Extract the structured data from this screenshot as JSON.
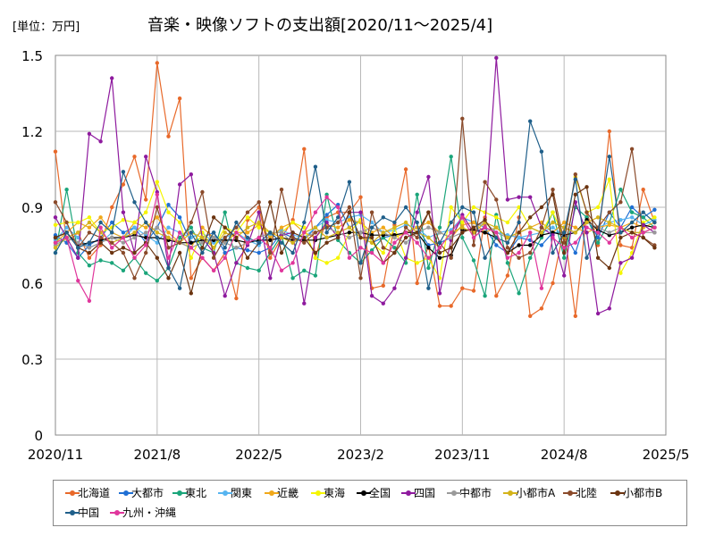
{
  "chart_data": {
    "type": "line",
    "title": "音楽・映像ソフトの支出額[2020/11～2025/4]",
    "unit_label": "[単位：万円]",
    "xlabel": "",
    "ylabel": "",
    "ylim": [
      0,
      1.5
    ],
    "y_ticks": [
      "0",
      "0.3",
      "0.6",
      "0.9",
      "1.2",
      "1.5"
    ],
    "x_ticks": [
      "2020/11",
      "2021/8",
      "2022/5",
      "2023/2",
      "2023/11",
      "2024/8",
      "2025/5"
    ],
    "grid": true,
    "legend_position": "bottom",
    "x": [
      "2020/11",
      "2020/12",
      "2021/1",
      "2021/2",
      "2021/3",
      "2021/4",
      "2021/5",
      "2021/6",
      "2021/7",
      "2021/8",
      "2021/9",
      "2021/10",
      "2021/11",
      "2021/12",
      "2022/1",
      "2022/2",
      "2022/3",
      "2022/4",
      "2022/5",
      "2022/6",
      "2022/7",
      "2022/8",
      "2022/9",
      "2022/10",
      "2022/11",
      "2022/12",
      "2023/1",
      "2023/2",
      "2023/3",
      "2023/4",
      "2023/5",
      "2023/6",
      "2023/7",
      "2023/8",
      "2023/9",
      "2023/10",
      "2023/11",
      "2023/12",
      "2024/1",
      "2024/2",
      "2024/3",
      "2024/4",
      "2024/5",
      "2024/6",
      "2024/7",
      "2024/8",
      "2024/9",
      "2024/10",
      "2024/11",
      "2024/12",
      "2025/1",
      "2025/2",
      "2025/3",
      "2025/4"
    ],
    "series": [
      {
        "name": "北海道",
        "color": "#e8692a",
        "values": [
          1.12,
          0.76,
          0.8,
          0.7,
          0.75,
          0.9,
          0.99,
          1.1,
          0.93,
          1.47,
          1.18,
          1.33,
          0.62,
          0.7,
          0.65,
          0.72,
          0.54,
          0.85,
          0.9,
          0.7,
          0.78,
          0.85,
          1.13,
          0.7,
          0.86,
          0.88,
          0.88,
          0.94,
          0.58,
          0.59,
          0.83,
          1.05,
          0.6,
          0.75,
          0.51,
          0.51,
          0.58,
          0.57,
          0.86,
          0.55,
          0.63,
          0.86,
          0.47,
          0.5,
          0.6,
          0.82,
          0.47,
          0.88,
          0.75,
          1.2,
          0.75,
          0.74,
          0.97,
          0.84
        ]
      },
      {
        "name": "大都市",
        "color": "#1f6fd4",
        "values": [
          0.79,
          0.76,
          0.7,
          0.75,
          0.78,
          0.84,
          0.8,
          0.82,
          0.76,
          0.82,
          0.91,
          0.86,
          0.76,
          0.78,
          0.8,
          0.72,
          0.74,
          0.73,
          0.72,
          0.74,
          0.8,
          0.78,
          0.77,
          0.82,
          0.87,
          0.91,
          0.82,
          0.85,
          0.76,
          0.78,
          0.79,
          0.8,
          0.82,
          0.75,
          0.76,
          0.78,
          0.86,
          0.84,
          0.82,
          0.75,
          0.72,
          0.78,
          0.77,
          0.75,
          0.8,
          0.8,
          0.72,
          0.86,
          0.78,
          0.88,
          0.82,
          0.9,
          0.86,
          0.89
        ]
      },
      {
        "name": "東北",
        "color": "#1aa57a",
        "values": [
          0.72,
          0.97,
          0.72,
          0.67,
          0.69,
          0.68,
          0.65,
          0.7,
          0.64,
          0.61,
          0.66,
          0.78,
          0.82,
          0.74,
          0.72,
          0.88,
          0.68,
          0.66,
          0.65,
          0.72,
          0.79,
          0.62,
          0.65,
          0.63,
          0.95,
          0.77,
          0.72,
          0.68,
          0.73,
          0.78,
          0.74,
          0.68,
          0.95,
          0.66,
          0.82,
          1.1,
          0.78,
          0.69,
          0.55,
          0.87,
          0.68,
          0.56,
          0.7,
          0.78,
          0.88,
          0.7,
          0.9,
          0.86,
          0.76,
          0.84,
          0.97,
          0.88,
          0.86,
          0.82
        ]
      },
      {
        "name": "関東",
        "color": "#56b4f0",
        "values": [
          0.77,
          0.82,
          0.78,
          0.74,
          0.76,
          0.8,
          0.78,
          0.82,
          0.79,
          0.76,
          0.82,
          0.8,
          0.78,
          0.8,
          0.76,
          0.78,
          0.8,
          0.77,
          0.75,
          0.79,
          0.81,
          0.79,
          0.78,
          0.82,
          0.85,
          0.84,
          0.86,
          0.87,
          0.84,
          0.8,
          0.81,
          0.83,
          0.82,
          0.78,
          0.8,
          0.81,
          0.86,
          0.84,
          0.82,
          0.8,
          0.79,
          0.78,
          0.79,
          0.8,
          0.82,
          0.79,
          0.8,
          0.84,
          0.82,
          0.84,
          0.85,
          0.86,
          0.83,
          0.85
        ]
      },
      {
        "name": "近畿",
        "color": "#f0a81a",
        "values": [
          0.76,
          0.8,
          0.84,
          0.82,
          0.86,
          0.8,
          0.78,
          0.84,
          0.82,
          0.86,
          0.8,
          0.76,
          0.74,
          0.82,
          0.78,
          0.76,
          0.8,
          0.8,
          0.83,
          0.78,
          0.82,
          0.84,
          0.8,
          0.78,
          0.83,
          0.82,
          0.85,
          0.84,
          0.8,
          0.82,
          0.78,
          0.8,
          0.82,
          0.84,
          0.8,
          0.78,
          0.83,
          0.84,
          0.8,
          0.82,
          0.78,
          0.8,
          0.82,
          0.84,
          0.8,
          0.84,
          0.82,
          0.8,
          0.82,
          0.83,
          0.82,
          0.84,
          0.82,
          0.84
        ]
      },
      {
        "name": "東海",
        "color": "#f5f500",
        "values": [
          0.83,
          0.84,
          0.84,
          0.86,
          0.8,
          0.82,
          0.85,
          0.84,
          0.88,
          1.0,
          0.88,
          0.84,
          0.7,
          0.8,
          0.74,
          0.82,
          0.8,
          0.86,
          0.82,
          0.8,
          0.8,
          0.84,
          0.82,
          0.7,
          0.68,
          0.7,
          0.8,
          0.85,
          0.76,
          0.72,
          0.82,
          0.7,
          0.68,
          0.7,
          0.62,
          0.9,
          0.84,
          0.9,
          0.88,
          0.86,
          0.84,
          0.9,
          0.82,
          0.8,
          0.88,
          0.78,
          1.02,
          0.88,
          0.9,
          1.01,
          0.64,
          0.72,
          0.84,
          0.86
        ]
      },
      {
        "name": "全国",
        "color": "#000000",
        "values": [
          0.78,
          0.8,
          0.75,
          0.76,
          0.77,
          0.78,
          0.78,
          0.79,
          0.78,
          0.78,
          0.77,
          0.76,
          0.76,
          0.77,
          0.77,
          0.77,
          0.77,
          0.76,
          0.77,
          0.77,
          0.78,
          0.77,
          0.77,
          0.77,
          0.78,
          0.79,
          0.8,
          0.8,
          0.79,
          0.79,
          0.79,
          0.8,
          0.8,
          0.74,
          0.7,
          0.71,
          0.81,
          0.81,
          0.8,
          0.78,
          0.72,
          0.75,
          0.75,
          0.79,
          0.8,
          0.79,
          0.8,
          0.85,
          0.81,
          0.79,
          0.8,
          0.82,
          0.83,
          0.82
        ]
      },
      {
        "name": "四国",
        "color": "#8e1a9e",
        "values": [
          0.86,
          0.78,
          0.7,
          1.19,
          1.16,
          1.41,
          0.88,
          0.72,
          1.1,
          0.96,
          0.66,
          0.99,
          1.03,
          0.78,
          0.72,
          0.55,
          0.68,
          0.75,
          0.88,
          0.62,
          0.79,
          0.8,
          0.52,
          0.78,
          0.84,
          0.78,
          0.88,
          0.88,
          0.55,
          0.52,
          0.58,
          0.7,
          0.88,
          1.02,
          0.56,
          0.77,
          0.87,
          0.8,
          0.82,
          1.49,
          0.93,
          0.94,
          0.94,
          0.82,
          0.79,
          0.63,
          0.92,
          0.8,
          0.48,
          0.5,
          0.68,
          0.7,
          0.83,
          0.8
        ]
      },
      {
        "name": "中都市",
        "color": "#9a9a9a",
        "values": [
          0.75,
          0.78,
          0.76,
          0.74,
          0.76,
          0.78,
          0.76,
          0.78,
          0.8,
          0.82,
          0.78,
          0.76,
          0.74,
          0.76,
          0.78,
          0.76,
          0.74,
          0.76,
          0.78,
          0.8,
          0.8,
          0.76,
          0.78,
          0.8,
          0.82,
          0.8,
          0.78,
          0.8,
          0.82,
          0.8,
          0.78,
          0.76,
          0.8,
          0.82,
          0.8,
          0.78,
          0.8,
          0.82,
          0.84,
          0.8,
          0.78,
          0.8,
          0.82,
          0.8,
          0.84,
          0.82,
          0.8,
          0.84,
          0.82,
          0.8,
          0.82,
          0.8,
          0.8,
          0.8
        ]
      },
      {
        "name": "小都市A",
        "color": "#d4b31a",
        "values": [
          0.74,
          0.78,
          0.8,
          0.84,
          0.8,
          0.76,
          0.78,
          0.8,
          0.84,
          0.8,
          0.78,
          0.76,
          0.8,
          0.78,
          0.74,
          0.8,
          0.78,
          0.82,
          0.84,
          0.8,
          0.78,
          0.76,
          0.8,
          0.82,
          0.78,
          0.8,
          0.82,
          0.78,
          0.76,
          0.8,
          0.82,
          0.84,
          0.8,
          0.78,
          0.74,
          0.8,
          0.82,
          0.8,
          0.84,
          0.82,
          0.78,
          0.8,
          0.82,
          0.8,
          0.84,
          0.82,
          0.8,
          0.84,
          0.86,
          0.84,
          0.82,
          0.8,
          0.8,
          0.82
        ]
      },
      {
        "name": "北陸",
        "color": "#8a4a2a",
        "values": [
          0.92,
          0.84,
          0.74,
          0.8,
          0.78,
          0.76,
          0.72,
          0.62,
          0.72,
          0.9,
          0.74,
          0.76,
          0.84,
          0.96,
          0.7,
          0.78,
          0.82,
          0.88,
          0.92,
          0.72,
          0.97,
          0.78,
          0.76,
          0.8,
          0.82,
          0.84,
          0.9,
          0.62,
          0.88,
          0.74,
          0.72,
          0.82,
          0.78,
          0.88,
          0.76,
          0.7,
          1.25,
          0.75,
          1.0,
          0.93,
          0.74,
          0.7,
          0.72,
          0.82,
          0.97,
          0.76,
          1.03,
          0.88,
          0.82,
          0.88,
          0.92,
          1.13,
          0.78,
          0.75
        ]
      },
      {
        "name": "小都市B",
        "color": "#6b3410",
        "values": [
          0.78,
          0.8,
          0.74,
          0.72,
          0.76,
          0.72,
          0.74,
          0.72,
          0.76,
          0.7,
          0.62,
          0.72,
          0.56,
          0.74,
          0.86,
          0.82,
          0.78,
          0.7,
          0.76,
          0.92,
          0.72,
          0.8,
          0.78,
          0.72,
          0.76,
          0.78,
          0.88,
          0.78,
          0.78,
          0.68,
          0.72,
          0.78,
          0.8,
          0.88,
          0.72,
          0.74,
          0.8,
          0.82,
          0.85,
          0.78,
          0.72,
          0.8,
          0.86,
          0.9,
          0.95,
          0.72,
          0.95,
          0.98,
          0.7,
          0.66,
          0.78,
          0.8,
          0.78,
          0.74
        ]
      },
      {
        "name": "中国",
        "color": "#1f5f8a",
        "values": [
          0.72,
          0.8,
          0.74,
          0.76,
          0.84,
          0.8,
          1.04,
          0.92,
          0.84,
          0.78,
          0.66,
          0.58,
          0.8,
          0.72,
          0.8,
          0.74,
          0.84,
          0.78,
          0.76,
          0.8,
          0.76,
          0.72,
          0.84,
          1.06,
          0.8,
          0.86,
          1.0,
          0.68,
          0.82,
          0.86,
          0.84,
          0.9,
          0.84,
          0.58,
          0.76,
          0.84,
          0.9,
          0.88,
          0.7,
          0.78,
          0.76,
          0.84,
          1.24,
          1.12,
          0.72,
          0.8,
          1.01,
          0.7,
          0.8,
          1.1,
          0.8,
          0.84,
          0.88,
          0.84
        ]
      },
      {
        "name": "九州・沖縄",
        "color": "#e0369c",
        "values": [
          0.76,
          0.78,
          0.61,
          0.53,
          0.82,
          0.74,
          0.78,
          0.7,
          0.75,
          0.95,
          0.7,
          0.8,
          0.74,
          0.7,
          0.65,
          0.7,
          0.8,
          0.76,
          0.78,
          0.74,
          0.65,
          0.68,
          0.8,
          0.88,
          0.94,
          0.9,
          0.7,
          0.74,
          0.72,
          0.68,
          0.76,
          0.8,
          0.76,
          0.7,
          0.74,
          0.8,
          0.86,
          0.78,
          0.82,
          0.8,
          0.7,
          0.72,
          0.8,
          0.58,
          0.78,
          0.74,
          0.76,
          0.82,
          0.8,
          0.76,
          0.82,
          0.78,
          0.8,
          0.82
        ]
      }
    ]
  }
}
